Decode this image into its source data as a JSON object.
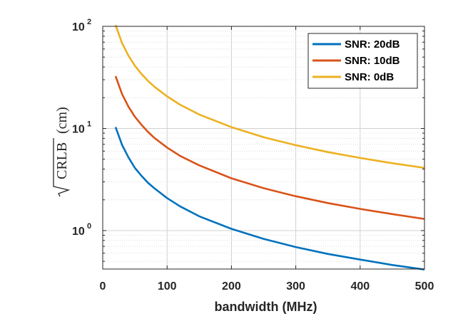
{
  "chart_data": {
    "type": "line",
    "title": "",
    "xlabel": "bandwidth (MHz)",
    "ylabel": "(cm)",
    "ylabel_sqrt_term": "CRLB",
    "x_ticks": [
      "0",
      "100",
      "200",
      "300",
      "400",
      "500"
    ],
    "y_ticks": [
      {
        "base": "10",
        "exp": "0"
      },
      {
        "base": "10",
        "exp": "1"
      },
      {
        "base": "10",
        "exp": "2"
      }
    ],
    "xlim": [
      0,
      500
    ],
    "ylim": [
      0.42,
      100
    ],
    "y_scale": "log",
    "grid": true,
    "legend_position": "top-right",
    "x": [
      20,
      30,
      40,
      50,
      60,
      70,
      80,
      100,
      120,
      150,
      200,
      250,
      300,
      350,
      400,
      450,
      500
    ],
    "series": [
      {
        "name": "SNR: 20dB",
        "color": "#0072BD",
        "values": [
          10.3,
          6.9,
          5.2,
          4.1,
          3.45,
          2.95,
          2.6,
          2.08,
          1.73,
          1.38,
          1.04,
          0.83,
          0.69,
          0.59,
          0.52,
          0.46,
          0.415
        ]
      },
      {
        "name": "SNR: 10dB",
        "color": "#D95319",
        "values": [
          32.5,
          21.7,
          16.3,
          13.0,
          10.9,
          9.3,
          8.1,
          6.5,
          5.4,
          4.35,
          3.25,
          2.6,
          2.17,
          1.86,
          1.63,
          1.45,
          1.3
        ]
      },
      {
        "name": "SNR: 0dB",
        "color": "#EDB120",
        "values": [
          103,
          68.5,
          51.5,
          41.1,
          34.3,
          29.4,
          25.7,
          20.6,
          17.1,
          13.7,
          10.3,
          8.2,
          6.85,
          5.87,
          5.14,
          4.57,
          4.11
        ]
      }
    ]
  }
}
